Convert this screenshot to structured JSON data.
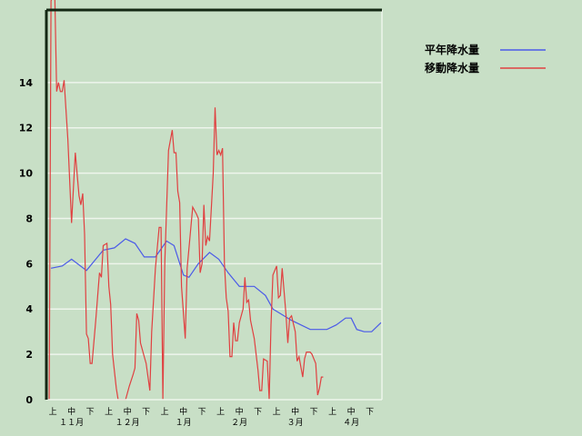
{
  "chart_data": {
    "type": "line",
    "title": "",
    "xlabel": "",
    "ylabel": "",
    "ylim": [
      0,
      17.2
    ],
    "yticks": [
      "0",
      "2",
      "4",
      "6",
      "8",
      "10",
      "12",
      "14"
    ],
    "grid": true,
    "legend_placement": "right",
    "x_period_labels": [
      "上",
      "中",
      "下",
      "上",
      "中",
      "下",
      "上",
      "中",
      "下",
      "上",
      "中",
      "下",
      "上",
      "中",
      "下",
      "上",
      "中",
      "下"
    ],
    "x_month_labels": [
      "１１月",
      "１２月",
      "１月",
      "２月",
      "３月",
      "４月"
    ],
    "series": [
      {
        "name": "平年降水量",
        "color": "#4a5ae8",
        "points": [
          [
            "11-03",
            5.8
          ],
          [
            "11-09",
            5.9
          ],
          [
            "11-14",
            6.2
          ],
          [
            "11-22",
            5.7
          ],
          [
            "12-01",
            6.6
          ],
          [
            "12-07",
            6.7
          ],
          [
            "12-13",
            7.1
          ],
          [
            "12-18",
            6.9
          ],
          [
            "12-23",
            6.3
          ],
          [
            "12-29",
            6.3
          ],
          [
            "01-04",
            7.0
          ],
          [
            "01-08",
            6.8
          ],
          [
            "01-13",
            5.5
          ],
          [
            "01-16",
            5.4
          ],
          [
            "01-21",
            6.0
          ],
          [
            "01-27",
            6.5
          ],
          [
            "02-01",
            6.2
          ],
          [
            "02-06",
            5.6
          ],
          [
            "02-12",
            5.0
          ],
          [
            "02-20",
            5.0
          ],
          [
            "02-26",
            4.6
          ],
          [
            "03-02",
            4.0
          ],
          [
            "03-12",
            3.5
          ],
          [
            "03-22",
            3.1
          ],
          [
            "03-31",
            3.1
          ],
          [
            "04-05",
            3.3
          ],
          [
            "04-10",
            3.6
          ],
          [
            "04-13",
            3.6
          ],
          [
            "04-16",
            3.1
          ],
          [
            "04-20",
            3.0
          ],
          [
            "04-24",
            3.0
          ],
          [
            "04-29",
            3.4
          ]
        ]
      },
      {
        "name": "移動降水量",
        "color": "#e04040",
        "points": [
          [
            "11-02",
            0
          ],
          [
            "11-03",
            17.6
          ],
          [
            "11-05",
            18.0
          ],
          [
            "11-06",
            13.6
          ],
          [
            "11-07",
            14.0
          ],
          [
            "11-08",
            13.6
          ],
          [
            "11-09",
            13.6
          ],
          [
            "11-10",
            14.1
          ],
          [
            "11-12",
            11.5
          ],
          [
            "11-14",
            7.8
          ],
          [
            "11-16",
            10.9
          ],
          [
            "11-18",
            9.0
          ],
          [
            "11-19",
            8.6
          ],
          [
            "11-20",
            9.1
          ],
          [
            "11-21",
            7.3
          ],
          [
            "11-22",
            2.9
          ],
          [
            "11-23",
            2.7
          ],
          [
            "11-24",
            1.6
          ],
          [
            "11-25",
            1.6
          ],
          [
            "11-27",
            3.5
          ],
          [
            "11-29",
            5.6
          ],
          [
            "11-30",
            5.4
          ],
          [
            "12-01",
            6.8
          ],
          [
            "12-03",
            6.9
          ],
          [
            "12-04",
            5.0
          ],
          [
            "12-05",
            4.2
          ],
          [
            "12-06",
            2.0
          ],
          [
            "12-08",
            0.5
          ],
          [
            "12-09",
            0
          ],
          [
            "12-13",
            0
          ],
          [
            "12-15",
            0.6
          ],
          [
            "12-17",
            1.1
          ],
          [
            "12-18",
            1.4
          ],
          [
            "12-19",
            3.8
          ],
          [
            "12-20",
            3.5
          ],
          [
            "12-21",
            2.5
          ],
          [
            "12-23",
            1.9
          ],
          [
            "12-24",
            1.6
          ],
          [
            "12-26",
            0.4
          ],
          [
            "12-27",
            3.0
          ],
          [
            "12-29",
            5.8
          ],
          [
            "12-31",
            7.6
          ],
          [
            "01-01",
            7.6
          ],
          [
            "01-02",
            0
          ],
          [
            "01-03",
            6.0
          ],
          [
            "01-05",
            11.0
          ],
          [
            "01-07",
            11.9
          ],
          [
            "01-08",
            10.9
          ],
          [
            "01-09",
            10.9
          ],
          [
            "01-10",
            9.2
          ],
          [
            "01-11",
            8.7
          ],
          [
            "01-12",
            5.0
          ],
          [
            "01-14",
            2.7
          ],
          [
            "01-15",
            5.8
          ],
          [
            "01-18",
            8.5
          ],
          [
            "01-20",
            8.2
          ],
          [
            "01-21",
            8.0
          ],
          [
            "01-22",
            5.6
          ],
          [
            "01-23",
            6.0
          ],
          [
            "01-24",
            8.6
          ],
          [
            "01-25",
            6.8
          ],
          [
            "01-26",
            7.2
          ],
          [
            "01-27",
            7.0
          ],
          [
            "01-29",
            10.0
          ],
          [
            "01-30",
            12.9
          ],
          [
            "01-31",
            10.8
          ],
          [
            "02-01",
            11.0
          ],
          [
            "02-02",
            10.8
          ],
          [
            "02-03",
            11.1
          ],
          [
            "02-04",
            6.0
          ],
          [
            "02-05",
            4.5
          ],
          [
            "02-06",
            3.9
          ],
          [
            "02-07",
            1.9
          ],
          [
            "02-08",
            1.9
          ],
          [
            "02-09",
            3.4
          ],
          [
            "02-10",
            2.6
          ],
          [
            "02-11",
            2.6
          ],
          [
            "02-12",
            3.4
          ],
          [
            "02-14",
            4.0
          ],
          [
            "02-15",
            5.4
          ],
          [
            "02-16",
            4.3
          ],
          [
            "02-17",
            4.4
          ],
          [
            "02-18",
            3.5
          ],
          [
            "02-20",
            2.7
          ],
          [
            "02-22",
            1.3
          ],
          [
            "02-23",
            0.4
          ],
          [
            "02-24",
            0.4
          ],
          [
            "02-25",
            1.8
          ],
          [
            "02-27",
            1.7
          ],
          [
            "02-28",
            0
          ],
          [
            "03-01",
            3.3
          ],
          [
            "03-02",
            5.5
          ],
          [
            "03-04",
            5.9
          ],
          [
            "03-05",
            4.5
          ],
          [
            "03-06",
            4.6
          ],
          [
            "03-07",
            5.8
          ],
          [
            "03-09",
            3.8
          ],
          [
            "03-10",
            2.5
          ],
          [
            "03-11",
            3.6
          ],
          [
            "03-12",
            3.7
          ],
          [
            "03-14",
            3.0
          ],
          [
            "03-15",
            1.7
          ],
          [
            "03-16",
            1.9
          ],
          [
            "03-18",
            1.0
          ],
          [
            "03-19",
            1.8
          ],
          [
            "03-20",
            2.1
          ],
          [
            "03-22",
            2.1
          ],
          [
            "03-23",
            2.0
          ],
          [
            "03-25",
            1.6
          ],
          [
            "03-26",
            0.2
          ],
          [
            "03-27",
            0.5
          ],
          [
            "03-28",
            1.0
          ],
          [
            "03-29",
            1.0
          ]
        ]
      }
    ]
  }
}
